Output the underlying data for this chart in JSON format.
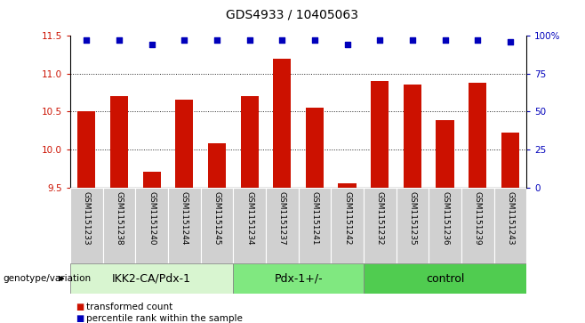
{
  "title": "GDS4933 / 10405063",
  "samples": [
    "GSM1151233",
    "GSM1151238",
    "GSM1151240",
    "GSM1151244",
    "GSM1151245",
    "GSM1151234",
    "GSM1151237",
    "GSM1151241",
    "GSM1151242",
    "GSM1151232",
    "GSM1151235",
    "GSM1151236",
    "GSM1151239",
    "GSM1151243"
  ],
  "bar_values": [
    10.5,
    10.7,
    9.7,
    10.65,
    10.08,
    10.7,
    11.2,
    10.55,
    9.55,
    10.9,
    10.85,
    10.38,
    10.88,
    10.22
  ],
  "percentile_y_positions": [
    11.44,
    11.44,
    11.38,
    11.44,
    11.44,
    11.44,
    11.44,
    11.44,
    11.38,
    11.44,
    11.44,
    11.44,
    11.44,
    11.42
  ],
  "ylim_left": [
    9.5,
    11.5
  ],
  "ylim_right": [
    0,
    100
  ],
  "yticks_left": [
    9.5,
    10.0,
    10.5,
    11.0,
    11.5
  ],
  "yticks_right": [
    0,
    25,
    50,
    75,
    100
  ],
  "ytick_labels_right": [
    "0",
    "25",
    "50",
    "75",
    "100%"
  ],
  "groups": [
    {
      "label": "IKK2-CA/Pdx-1",
      "start": 0,
      "end": 5,
      "color": "#d8f5d0"
    },
    {
      "label": "Pdx-1+/-",
      "start": 5,
      "end": 9,
      "color": "#80e880"
    },
    {
      "label": "control",
      "start": 9,
      "end": 14,
      "color": "#50cc50"
    }
  ],
  "bar_color": "#cc1100",
  "dot_color": "#0000bb",
  "axis_label_color_left": "#cc1100",
  "axis_label_color_right": "#0000bb",
  "genotype_label": "genotype/variation",
  "legend_bar_label": "transformed count",
  "legend_dot_label": "percentile rank within the sample",
  "background_color": "#ffffff",
  "tick_area_color": "#d0d0d0",
  "dotted_line_color": "#222222",
  "bar_width": 0.55,
  "title_fontsize": 10,
  "tick_fontsize": 7.5,
  "sample_fontsize": 6.5,
  "group_label_fontsize": 9,
  "legend_fontsize": 7.5,
  "genotype_fontsize": 7.5
}
